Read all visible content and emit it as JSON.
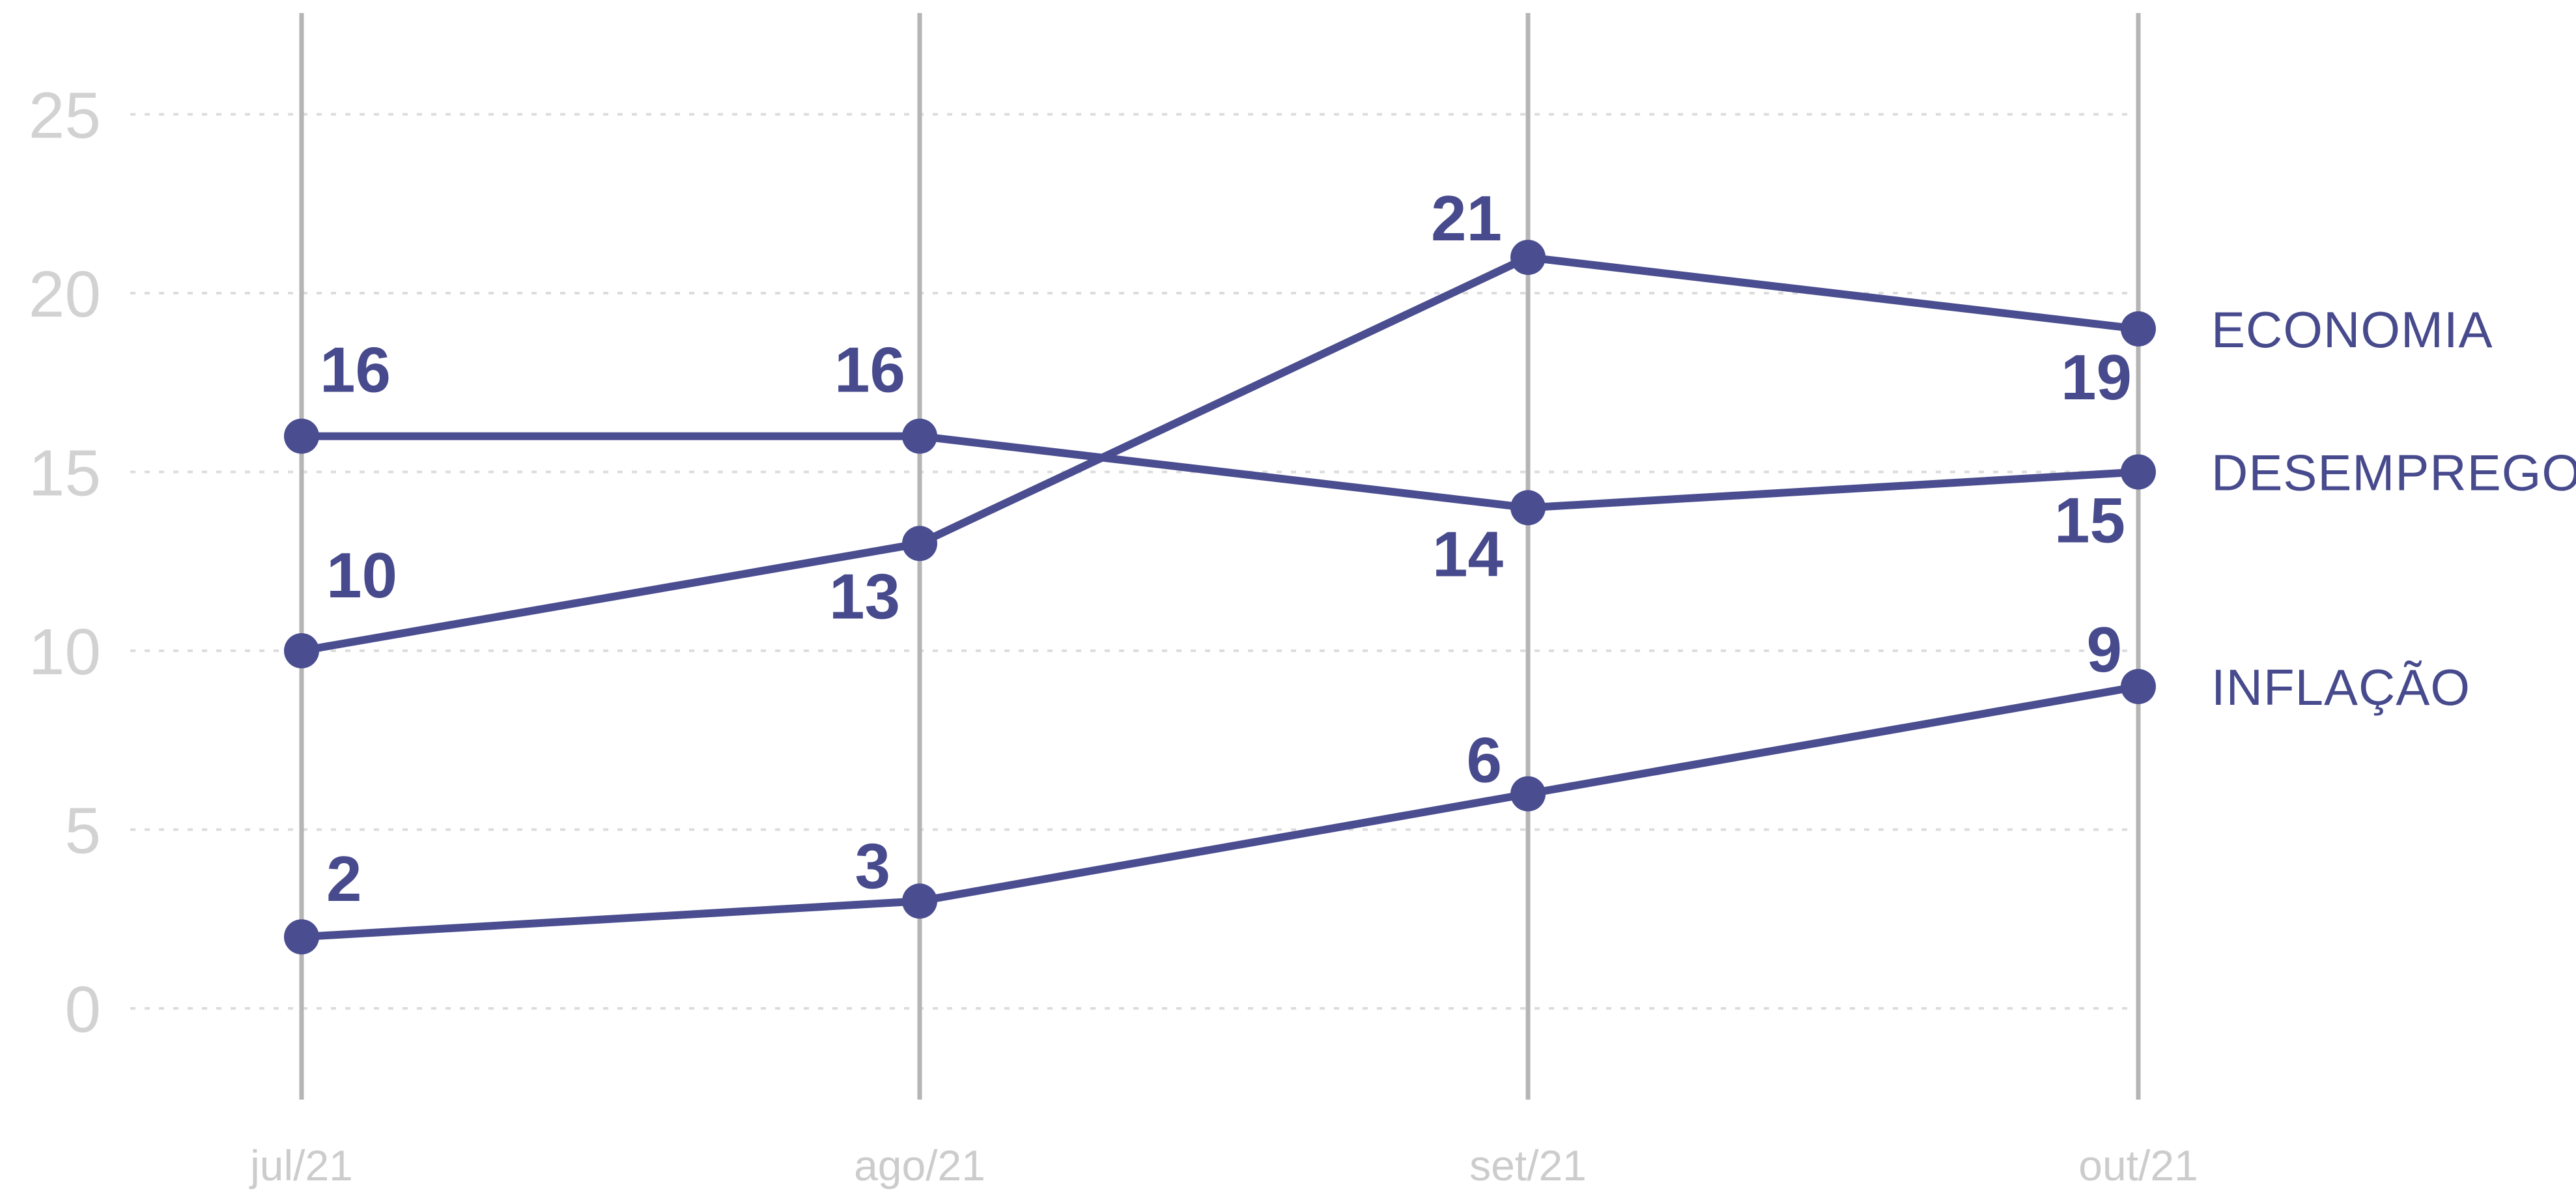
{
  "chart_data": {
    "type": "line",
    "categories": [
      "jul/21",
      "ago/21",
      "set/21",
      "out/21"
    ],
    "y_ticks": [
      "0",
      "5",
      "10",
      "15",
      "20",
      "25"
    ],
    "ylim": [
      -2.5,
      27.5
    ],
    "grid": "horizontal dashed, vertical solid at each category",
    "legend": "end-of-line labels at right",
    "series": [
      {
        "name": "ECONOMIA",
        "values": [
          10,
          13,
          21,
          19
        ]
      },
      {
        "name": "DESEMPREGO",
        "values": [
          16,
          16,
          14,
          15
        ]
      },
      {
        "name": "INFLAÇÃO",
        "values": [
          2,
          3,
          6,
          9
        ]
      }
    ],
    "colors": {
      "series": "#4a4d8f",
      "label": "#474a8c",
      "ytick": "#d2d2d2",
      "xtick": "#cccccc",
      "grid": "#dcdcdc",
      "vline": "#b5b5b5"
    }
  }
}
